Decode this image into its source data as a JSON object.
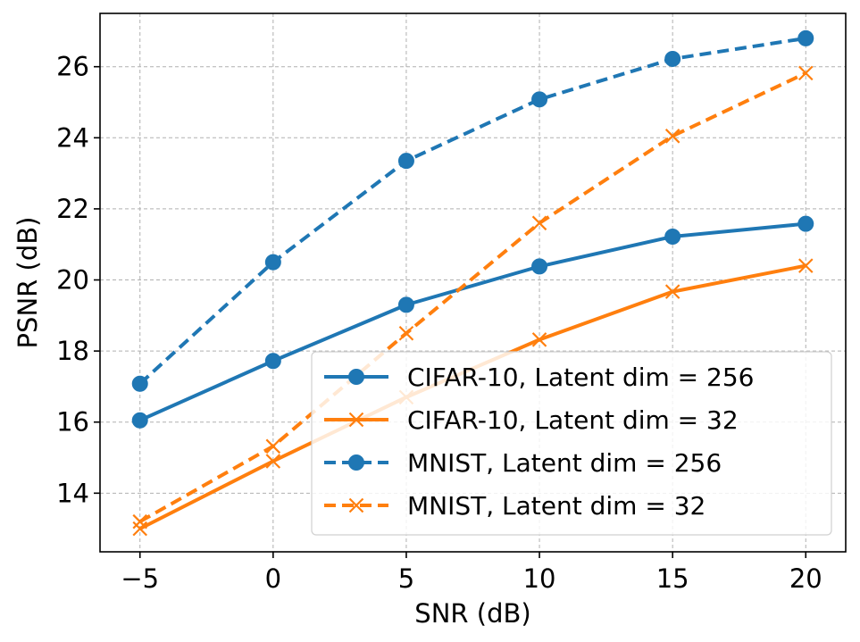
{
  "chart_data": {
    "type": "line",
    "title": "",
    "xlabel": "SNR (dB)",
    "ylabel": "PSNR (dB)",
    "xlim": [
      -6.5,
      21.5
    ],
    "ylim": [
      12.35,
      27.5
    ],
    "x": [
      -5,
      0,
      5,
      10,
      15,
      20
    ],
    "xticks": [
      -5,
      0,
      5,
      10,
      15,
      20
    ],
    "xtick_labels": [
      "−5",
      "0",
      "5",
      "10",
      "15",
      "20"
    ],
    "yticks": [
      14,
      16,
      18,
      20,
      22,
      24,
      26
    ],
    "ytick_labels": [
      "14",
      "16",
      "18",
      "20",
      "22",
      "24",
      "26"
    ],
    "grid": true,
    "legend_position": "bottom-right",
    "series": [
      {
        "name": "CIFAR-10, Latent dim = 256",
        "color": "#1f77b4",
        "linestyle": "solid",
        "marker": "circle",
        "values": [
          16.05,
          17.72,
          19.3,
          20.38,
          21.22,
          21.58
        ]
      },
      {
        "name": "CIFAR-10, Latent dim = 32",
        "color": "#ff7f0e",
        "linestyle": "solid",
        "marker": "x",
        "values": [
          13.0,
          14.9,
          16.7,
          18.32,
          19.67,
          20.4
        ]
      },
      {
        "name": "MNIST, Latent dim = 256",
        "color": "#1f77b4",
        "linestyle": "dashed",
        "marker": "circle",
        "values": [
          17.08,
          20.5,
          23.35,
          25.08,
          26.22,
          26.8
        ]
      },
      {
        "name": "MNIST, Latent dim = 32",
        "color": "#ff7f0e",
        "linestyle": "dashed",
        "marker": "x",
        "values": [
          13.2,
          15.32,
          18.5,
          21.6,
          24.05,
          25.82
        ]
      }
    ]
  }
}
